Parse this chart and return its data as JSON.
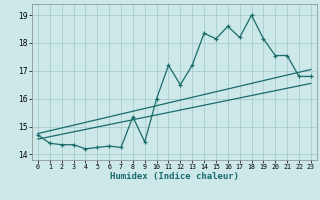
{
  "title": "",
  "xlabel": "Humidex (Indice chaleur)",
  "ylabel": "",
  "xlim": [
    -0.5,
    23.5
  ],
  "ylim": [
    13.8,
    19.4
  ],
  "xticks": [
    0,
    1,
    2,
    3,
    4,
    5,
    6,
    7,
    8,
    9,
    10,
    11,
    12,
    13,
    14,
    15,
    16,
    17,
    18,
    19,
    20,
    21,
    22,
    23
  ],
  "yticks": [
    14,
    15,
    16,
    17,
    18,
    19
  ],
  "bg_color": "#cce8e8",
  "line_color": "#1a6b6b",
  "grid_color": "#aacccc",
  "data_line": {
    "x": [
      0,
      1,
      2,
      3,
      4,
      5,
      6,
      7,
      8,
      9,
      10,
      11,
      12,
      13,
      14,
      15,
      16,
      17,
      18,
      19,
      20,
      21,
      22,
      23
    ],
    "y": [
      14.7,
      14.4,
      14.35,
      14.35,
      14.2,
      14.25,
      14.3,
      14.25,
      15.35,
      14.45,
      16.0,
      17.2,
      16.5,
      17.2,
      18.35,
      18.15,
      18.6,
      18.2,
      19.0,
      18.15,
      17.55,
      17.55,
      16.8,
      16.8
    ]
  },
  "trend_line1": {
    "x": [
      0,
      23
    ],
    "y": [
      14.75,
      17.05
    ]
  },
  "trend_line2": {
    "x": [
      0,
      23
    ],
    "y": [
      14.55,
      16.55
    ]
  }
}
